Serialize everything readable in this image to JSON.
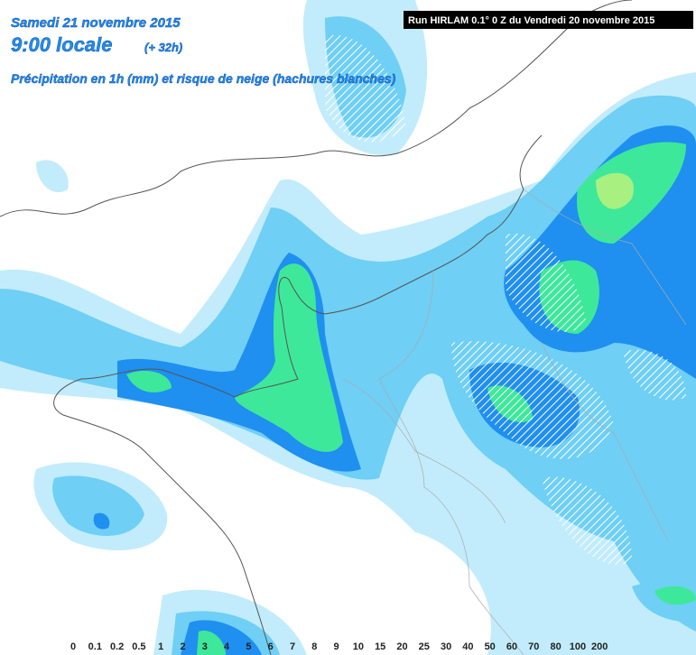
{
  "header": {
    "date": "Samedi 21 novembre 2015",
    "time": "9:00 locale",
    "offset": "(+ 32h)",
    "subtitle": "Précipitation en 1h (mm) et risque de neige (hachures blanches)"
  },
  "run": "Run HIRLAM 0.1° 0 Z du Vendredi 20 novembre 2015",
  "legend": {
    "ticks": [
      "0",
      "0.1",
      "0.2",
      "0.5",
      "1",
      "2",
      "3",
      "4",
      "5",
      "6",
      "7",
      "8",
      "9",
      "10",
      "15",
      "20",
      "25",
      "30",
      "40",
      "50",
      "60",
      "70",
      "80",
      "100",
      "200"
    ]
  }
}
